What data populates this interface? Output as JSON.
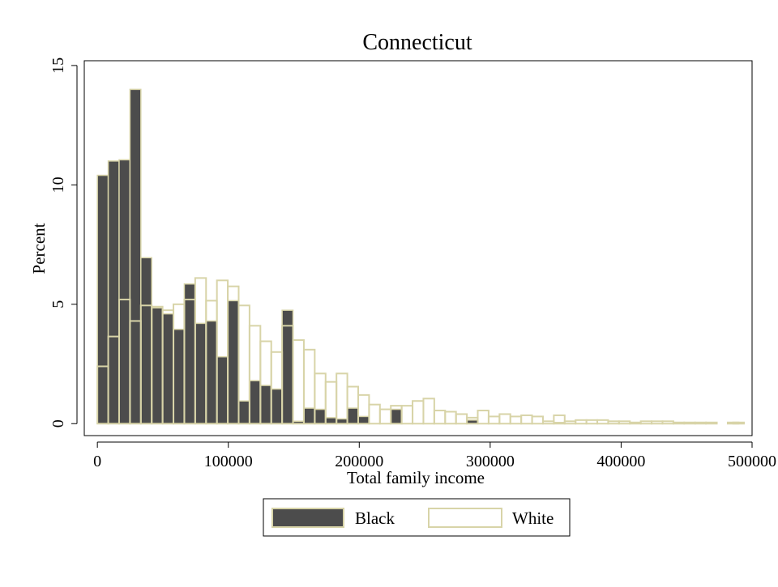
{
  "chart_data": {
    "type": "bar",
    "title": "Connecticut",
    "xlabel": "Total family income",
    "ylabel": "Percent",
    "xlim": [
      -10000,
      500000
    ],
    "ylim": [
      -0.5,
      15.2
    ],
    "xticks": [
      0,
      100000,
      200000,
      300000,
      400000,
      500000
    ],
    "yticks": [
      0,
      5,
      10,
      15
    ],
    "bin_width": 8300,
    "grid": false,
    "legend_position": "bottom",
    "colors": {
      "black_fill": "#4c4c4c",
      "bar_stroke": "#d8d4a8",
      "axis": "#000000",
      "background": "#ffffff"
    },
    "series": [
      {
        "name": "Black",
        "style": "filled",
        "bins": [
          {
            "x": 0,
            "y": 10.4
          },
          {
            "x": 8300,
            "y": 11.0
          },
          {
            "x": 16600,
            "y": 11.05
          },
          {
            "x": 24900,
            "y": 14.0
          },
          {
            "x": 33200,
            "y": 6.95
          },
          {
            "x": 41500,
            "y": 4.85
          },
          {
            "x": 49800,
            "y": 4.6
          },
          {
            "x": 58100,
            "y": 3.95
          },
          {
            "x": 66400,
            "y": 5.85
          },
          {
            "x": 74700,
            "y": 4.2
          },
          {
            "x": 83000,
            "y": 4.3
          },
          {
            "x": 91300,
            "y": 2.8
          },
          {
            "x": 99600,
            "y": 5.15
          },
          {
            "x": 107900,
            "y": 0.95
          },
          {
            "x": 116200,
            "y": 1.8
          },
          {
            "x": 124500,
            "y": 1.6
          },
          {
            "x": 132800,
            "y": 1.45
          },
          {
            "x": 141100,
            "y": 4.75
          },
          {
            "x": 149400,
            "y": 0.1
          },
          {
            "x": 157700,
            "y": 0.65
          },
          {
            "x": 166000,
            "y": 0.6
          },
          {
            "x": 174300,
            "y": 0.25
          },
          {
            "x": 182600,
            "y": 0.2
          },
          {
            "x": 190900,
            "y": 0.65
          },
          {
            "x": 199200,
            "y": 0.3
          },
          {
            "x": 224100,
            "y": 0.6
          },
          {
            "x": 282200,
            "y": 0.15
          },
          {
            "x": 348600,
            "y": 0.05
          }
        ]
      },
      {
        "name": "White",
        "style": "outline",
        "bins": [
          {
            "x": 0,
            "y": 2.4
          },
          {
            "x": 8300,
            "y": 3.65
          },
          {
            "x": 16600,
            "y": 5.2
          },
          {
            "x": 24900,
            "y": 4.3
          },
          {
            "x": 33200,
            "y": 4.95
          },
          {
            "x": 41500,
            "y": 4.9
          },
          {
            "x": 49800,
            "y": 4.75
          },
          {
            "x": 58100,
            "y": 5.0
          },
          {
            "x": 66400,
            "y": 5.2
          },
          {
            "x": 74700,
            "y": 6.1
          },
          {
            "x": 83000,
            "y": 5.15
          },
          {
            "x": 91300,
            "y": 6.0
          },
          {
            "x": 99600,
            "y": 5.75
          },
          {
            "x": 107900,
            "y": 4.95
          },
          {
            "x": 116200,
            "y": 4.1
          },
          {
            "x": 124500,
            "y": 3.45
          },
          {
            "x": 132800,
            "y": 3.0
          },
          {
            "x": 141100,
            "y": 4.1
          },
          {
            "x": 149400,
            "y": 3.5
          },
          {
            "x": 157700,
            "y": 3.1
          },
          {
            "x": 166000,
            "y": 2.1
          },
          {
            "x": 174300,
            "y": 1.75
          },
          {
            "x": 182600,
            "y": 2.1
          },
          {
            "x": 190900,
            "y": 1.55
          },
          {
            "x": 199200,
            "y": 1.2
          },
          {
            "x": 207500,
            "y": 0.8
          },
          {
            "x": 215800,
            "y": 0.6
          },
          {
            "x": 224100,
            "y": 0.75
          },
          {
            "x": 232400,
            "y": 0.75
          },
          {
            "x": 240700,
            "y": 0.95
          },
          {
            "x": 249000,
            "y": 1.05
          },
          {
            "x": 257300,
            "y": 0.55
          },
          {
            "x": 265600,
            "y": 0.5
          },
          {
            "x": 273900,
            "y": 0.4
          },
          {
            "x": 282200,
            "y": 0.25
          },
          {
            "x": 290500,
            "y": 0.55
          },
          {
            "x": 298800,
            "y": 0.3
          },
          {
            "x": 307100,
            "y": 0.4
          },
          {
            "x": 315400,
            "y": 0.3
          },
          {
            "x": 323700,
            "y": 0.35
          },
          {
            "x": 332000,
            "y": 0.3
          },
          {
            "x": 340300,
            "y": 0.1
          },
          {
            "x": 348600,
            "y": 0.35
          },
          {
            "x": 356900,
            "y": 0.1
          },
          {
            "x": 365200,
            "y": 0.15
          },
          {
            "x": 373500,
            "y": 0.15
          },
          {
            "x": 381800,
            "y": 0.15
          },
          {
            "x": 390100,
            "y": 0.1
          },
          {
            "x": 398400,
            "y": 0.1
          },
          {
            "x": 406700,
            "y": 0.05
          },
          {
            "x": 415000,
            "y": 0.1
          },
          {
            "x": 423300,
            "y": 0.1
          },
          {
            "x": 431600,
            "y": 0.1
          },
          {
            "x": 439900,
            "y": 0.05
          },
          {
            "x": 448200,
            "y": 0.05
          },
          {
            "x": 456500,
            "y": 0.05
          },
          {
            "x": 464800,
            "y": 0.05
          },
          {
            "x": 481400,
            "y": 0.05
          },
          {
            "x": 485500,
            "y": 0.05
          }
        ]
      }
    ]
  }
}
